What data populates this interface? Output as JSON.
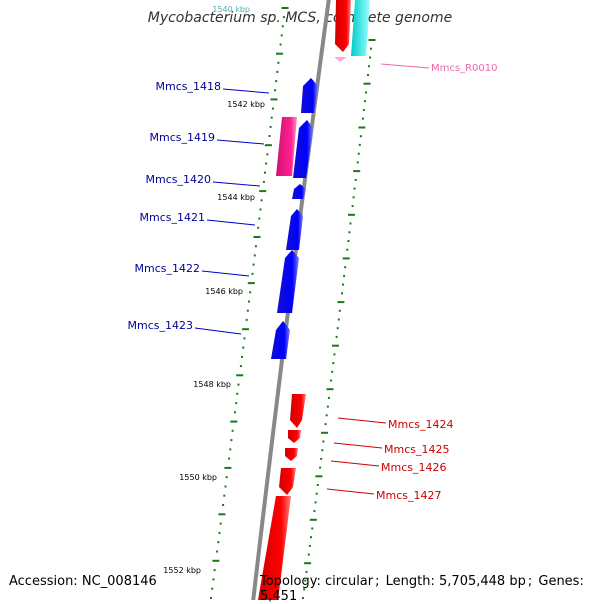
{
  "title": "Mycobacterium sp. MCS, complete genome",
  "footer": {
    "accession_label": "Accession:",
    "accession": "NC_008146",
    "topology_label": "Topology:",
    "topology": "circular",
    "length_label": "Length:",
    "length": "5,705,448 bp",
    "genes_label": "Genes:",
    "genes": "5,451"
  },
  "colors": {
    "forward_gene": "#0000ee",
    "reverse_gene": "#ee0000",
    "rrna_gene": "#ee1188",
    "trna_gene": "#00dddd",
    "ncrna": "#ffaadd",
    "backbone": "#888888",
    "tick": "#1a7a1a",
    "forward_label": "#000099",
    "reverse_label": "#cc0000",
    "ncrna_label": "#ee66aa"
  },
  "ticks": [
    "1540 kbp",
    "1542 kbp",
    "1544 kbp",
    "1546 kbp",
    "1548 kbp",
    "1550 kbp",
    "1552 kbp"
  ],
  "genes_left": [
    "Mmcs_1418",
    "Mmcs_1419",
    "Mmcs_1420",
    "Mmcs_1421",
    "Mmcs_1422",
    "Mmcs_1423"
  ],
  "genes_right": [
    "Mmcs_1424",
    "Mmcs_1425",
    "Mmcs_1426",
    "Mmcs_1427"
  ],
  "ncrna_label": "Mmcs_R0010"
}
